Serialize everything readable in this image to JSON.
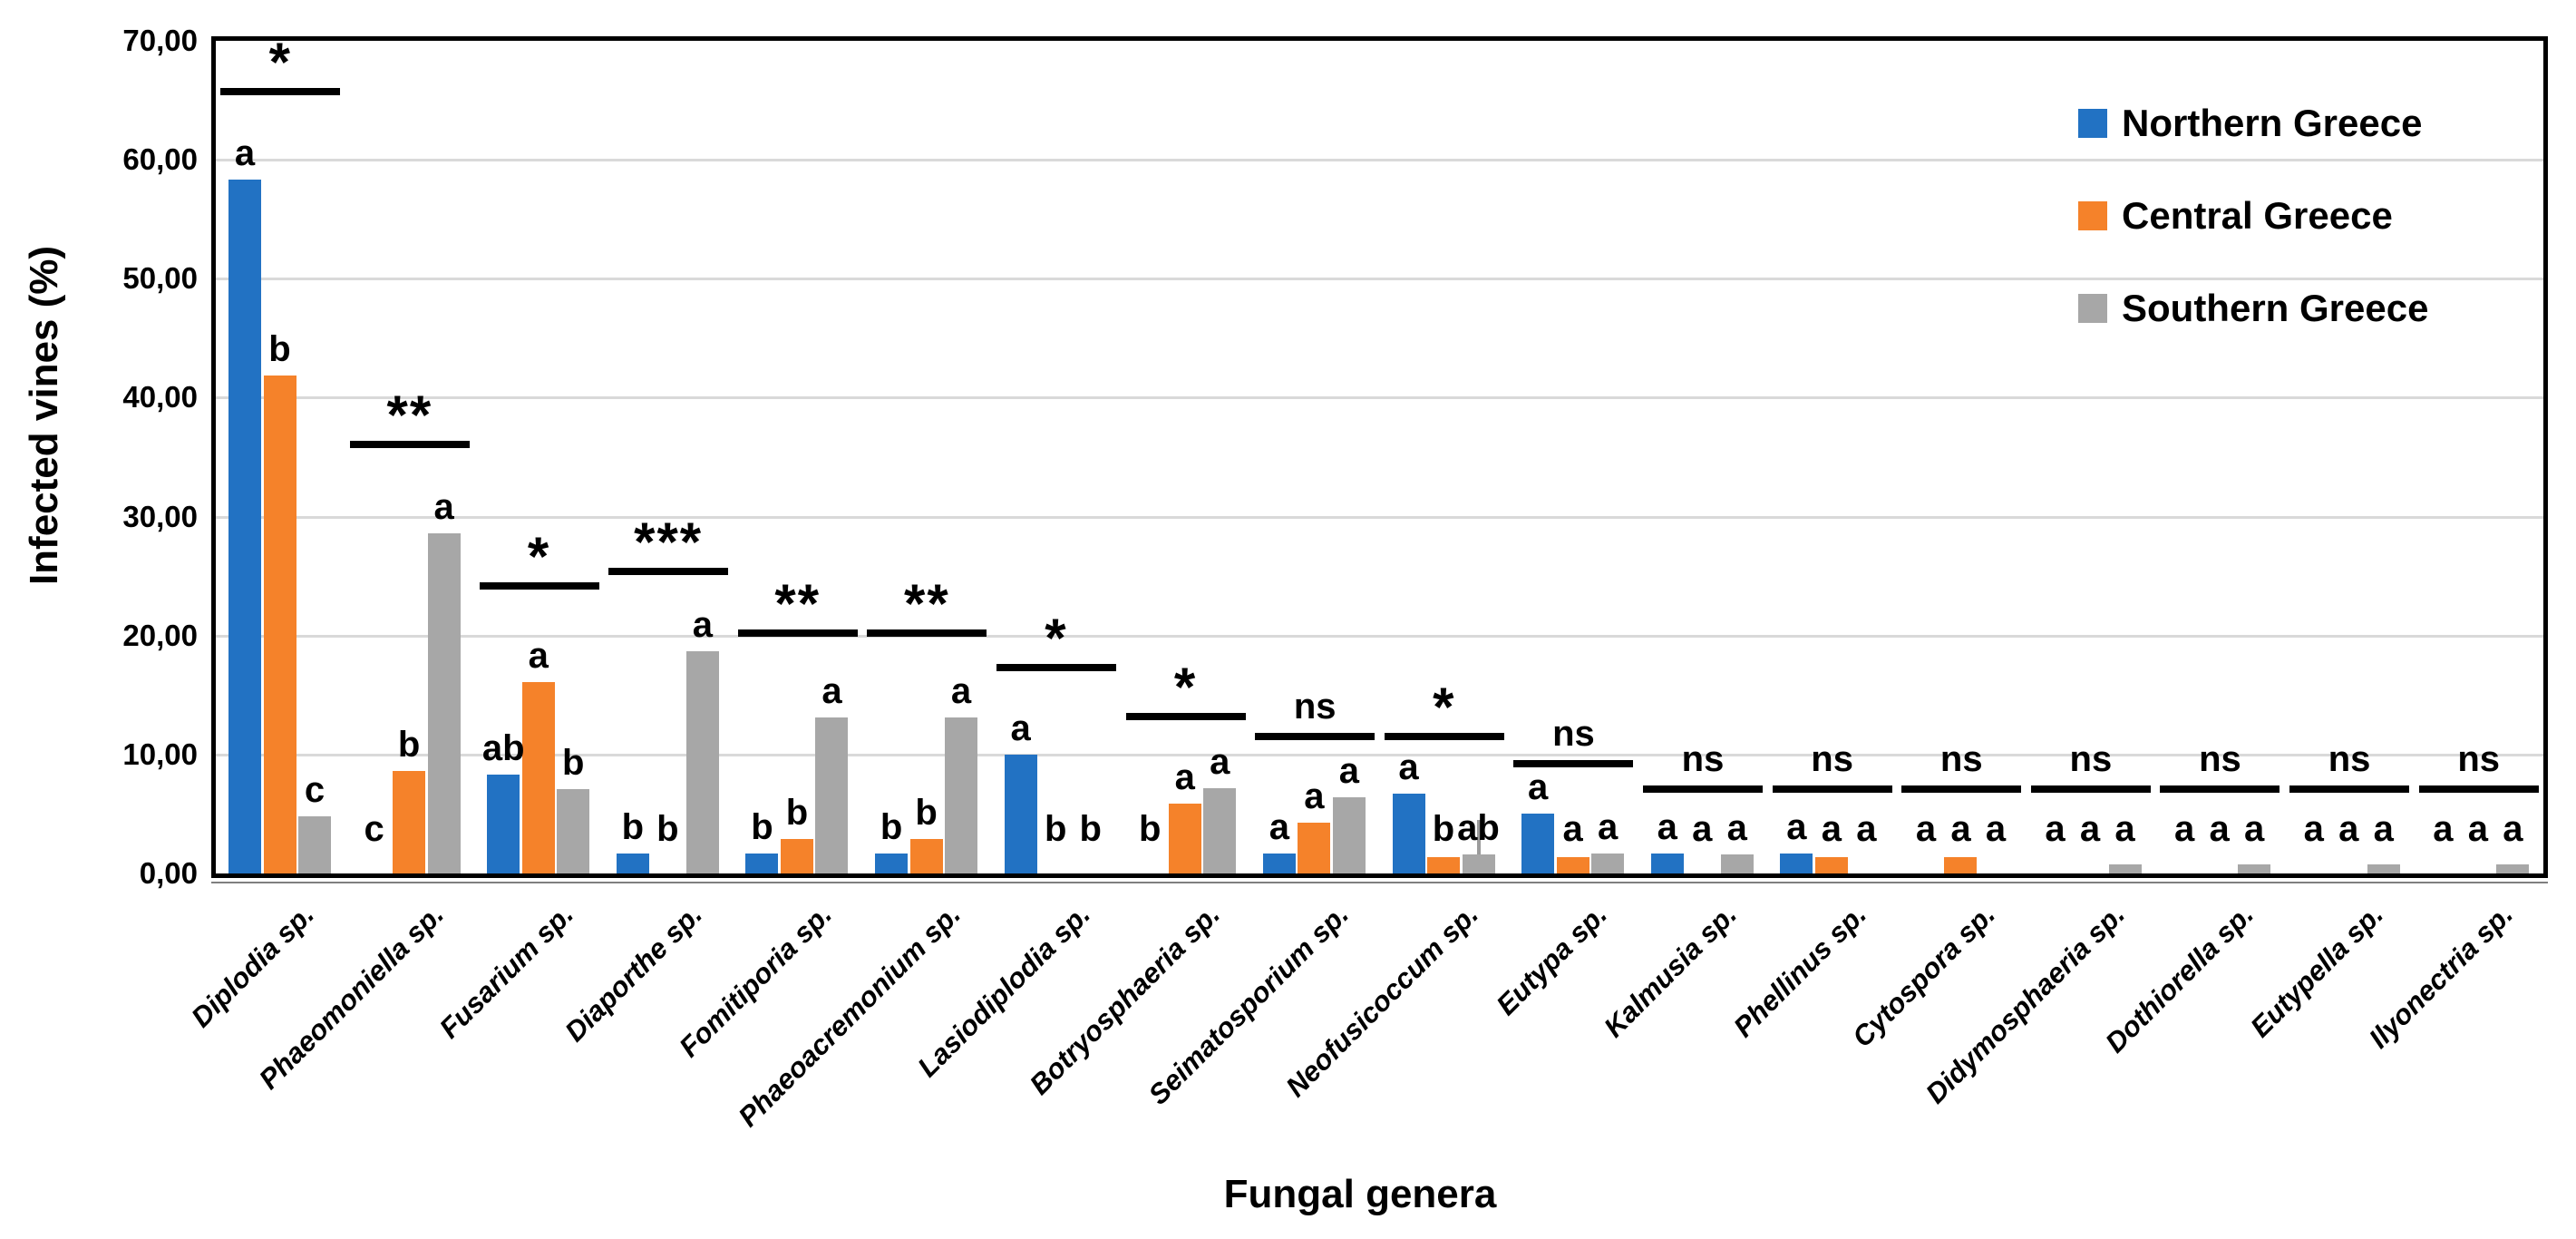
{
  "page": {
    "background": "#ffffff"
  },
  "chart_data": {
    "type": "bar",
    "title": "",
    "xlabel": "Fungal genera",
    "ylabel": "Infected vines (%)",
    "ylim": [
      0,
      70
    ],
    "grid": "horizontal-light-gray",
    "legend_position": "top-right-inside",
    "decimal_style": "comma",
    "colors": {
      "northern": "#2272C3",
      "central": "#F5822A",
      "southern": "#A7A7A7",
      "gridline": "#d9d9d9",
      "frame": "#000000"
    },
    "yticks": [
      {
        "value": 0,
        "label": "0,00"
      },
      {
        "value": 10,
        "label": "10,00"
      },
      {
        "value": 20,
        "label": "20,00"
      },
      {
        "value": 30,
        "label": "30,00"
      },
      {
        "value": 40,
        "label": "40,00"
      },
      {
        "value": 50,
        "label": "50,00"
      },
      {
        "value": 60,
        "label": "60,00"
      },
      {
        "value": 70,
        "label": "70,00"
      }
    ],
    "categories": [
      "Diplodia sp.",
      "Phaeomoniella sp.",
      "Fusarium sp.",
      "Diaporthe sp.",
      "Fomitiporia sp.",
      "Phaeoacremonium sp.",
      "Lasiodiplodia sp.",
      "Botryosphaeria sp.",
      "Seimatosporium sp.",
      "Neofusicoccum sp.",
      "Eutypa sp.",
      "Kalmusia sp.",
      "Phellinus sp.",
      "Cytospora sp.",
      "Didymosphaeria sp.",
      "Dothiorella sp.",
      "Eutypella sp.",
      "Ilyonectria sp."
    ],
    "series": [
      {
        "name": "Northern Greece",
        "color_key": "northern",
        "values": [
          58.3,
          0,
          8.3,
          1.7,
          1.7,
          1.7,
          10.0,
          0,
          1.7,
          6.7,
          5.0,
          1.7,
          1.7,
          0,
          0,
          0,
          0,
          0
        ]
      },
      {
        "name": "Central Greece",
        "color_key": "central",
        "values": [
          41.9,
          8.6,
          16.1,
          0,
          2.9,
          2.9,
          0,
          5.9,
          4.3,
          1.4,
          1.4,
          0,
          1.4,
          1.4,
          0,
          0,
          0,
          0
        ]
      },
      {
        "name": "Southern Greece",
        "color_key": "southern",
        "values": [
          4.8,
          28.6,
          7.1,
          18.7,
          13.1,
          13.1,
          0,
          7.2,
          6.4,
          1.6,
          1.7,
          1.6,
          0,
          0,
          0.8,
          0.8,
          0.8,
          0.8
        ]
      }
    ],
    "letters": [
      [
        "a",
        "b",
        "c"
      ],
      [
        "c",
        "b",
        "a"
      ],
      [
        "ab",
        "a",
        "b"
      ],
      [
        "b",
        "b",
        "a"
      ],
      [
        "b",
        "b",
        "a"
      ],
      [
        "b",
        "b",
        "a"
      ],
      [
        "a",
        "b",
        "b"
      ],
      [
        "b",
        "a",
        "a"
      ],
      [
        "a",
        "a",
        "a"
      ],
      [
        "a",
        "b",
        "ab"
      ],
      [
        "a",
        "a",
        "a"
      ],
      [
        "a",
        "a",
        "a"
      ],
      [
        "a",
        "a",
        "a"
      ],
      [
        "a",
        "a",
        "a"
      ],
      [
        "a",
        "a",
        "a"
      ],
      [
        "a",
        "a",
        "a"
      ],
      [
        "a",
        "a",
        "a"
      ],
      [
        "a",
        "a",
        "a"
      ]
    ],
    "significance": [
      {
        "label": "*",
        "line_y": 66.0
      },
      {
        "label": "**",
        "line_y": 36.4
      },
      {
        "label": "*",
        "line_y": 24.5
      },
      {
        "label": "***",
        "line_y": 25.7
      },
      {
        "label": "**",
        "line_y": 20.5
      },
      {
        "label": "**",
        "line_y": 20.5
      },
      {
        "label": "*",
        "line_y": 17.6
      },
      {
        "label": "*",
        "line_y": 13.5
      },
      {
        "label": "ns",
        "line_y": 11.8
      },
      {
        "label": "*",
        "line_y": 11.8
      },
      {
        "label": "ns",
        "line_y": 9.5
      },
      {
        "label": "ns",
        "line_y": 7.4
      },
      {
        "label": "ns",
        "line_y": 7.4
      },
      {
        "label": "ns",
        "line_y": 7.4
      },
      {
        "label": "ns",
        "line_y": 7.4
      },
      {
        "label": "ns",
        "line_y": 7.4
      },
      {
        "label": "ns",
        "line_y": 7.4
      },
      {
        "label": "ns",
        "line_y": 7.4
      }
    ],
    "error_bars": [
      {
        "category_index": 9,
        "series_index": 2,
        "top_value": 4.5
      }
    ],
    "legend": [
      {
        "name": "Northern Greece",
        "color_key": "northern"
      },
      {
        "name": "Central Greece",
        "color_key": "central"
      },
      {
        "name": "Southern Greece",
        "color_key": "southern"
      }
    ]
  }
}
